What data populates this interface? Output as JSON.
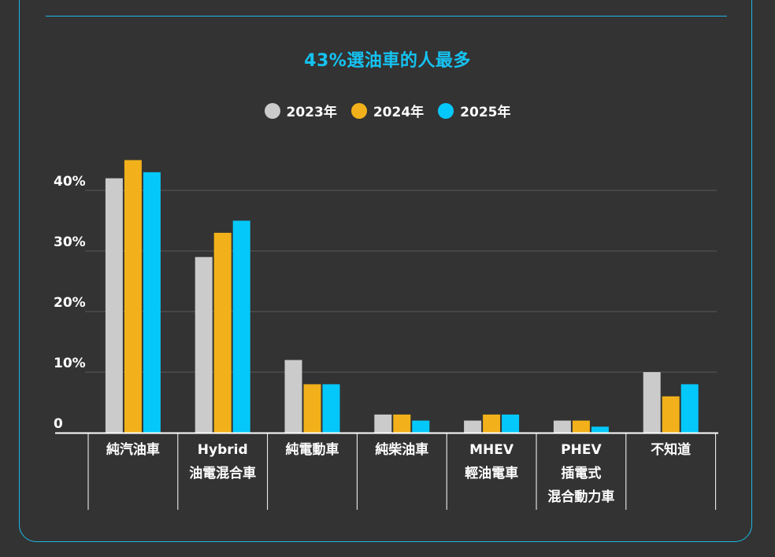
{
  "colors": {
    "background": "#333333",
    "accent": "#15c3f2",
    "series_2023": "#cbcbcb",
    "series_2024": "#f2b11a",
    "series_2025": "#05c8fa"
  },
  "chart_data": {
    "type": "bar",
    "title": "43%選油車的人最多",
    "xlabel": "",
    "ylabel": "",
    "ylim": [
      0,
      45
    ],
    "y_ticks": [
      {
        "value": 0,
        "label": "0"
      },
      {
        "value": 10,
        "label": "10%"
      },
      {
        "value": 20,
        "label": "20%"
      },
      {
        "value": 30,
        "label": "30%"
      },
      {
        "value": 40,
        "label": "40%"
      }
    ],
    "grid": true,
    "legend_position": "top-center",
    "categories": [
      [
        "純汽油車"
      ],
      [
        "Hybrid",
        "油電混合車"
      ],
      [
        "純電動車"
      ],
      [
        "純柴油車"
      ],
      [
        "MHEV",
        "輕油電車"
      ],
      [
        "PHEV",
        "插電式",
        "混合動力車"
      ],
      [
        "不知道"
      ]
    ],
    "series": [
      {
        "name": "2023年",
        "color": "#cbcbcb",
        "values": [
          42,
          29,
          12,
          3,
          2,
          2,
          10
        ]
      },
      {
        "name": "2024年",
        "color": "#f2b11a",
        "values": [
          45,
          33,
          8,
          3,
          3,
          2,
          6
        ]
      },
      {
        "name": "2025年",
        "color": "#05c8fa",
        "values": [
          43,
          35,
          8,
          2,
          3,
          1,
          8
        ]
      }
    ]
  }
}
